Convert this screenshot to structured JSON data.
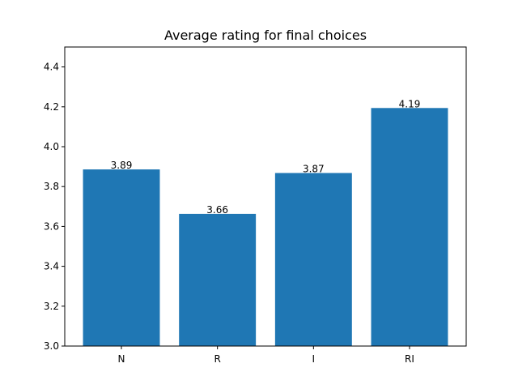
{
  "chart_data": {
    "type": "bar",
    "title": "Average rating for final choices",
    "xlabel": "",
    "ylabel": "",
    "categories": [
      "N",
      "R",
      "I",
      "RI"
    ],
    "values": [
      3.886,
      3.663,
      3.868,
      4.194
    ],
    "data_labels": [
      "3.89",
      "3.66",
      "3.87",
      "4.19"
    ],
    "ylim": [
      3.0,
      4.5
    ],
    "yticks": [
      3.0,
      3.2,
      3.4,
      3.6,
      3.8,
      4.0,
      4.2,
      4.4
    ],
    "ytick_labels": [
      "3.0",
      "3.2",
      "3.4",
      "3.6",
      "3.8",
      "4.0",
      "4.2",
      "4.4"
    ],
    "bar_color": "#1f77b4",
    "grid": false,
    "legend": "none"
  }
}
